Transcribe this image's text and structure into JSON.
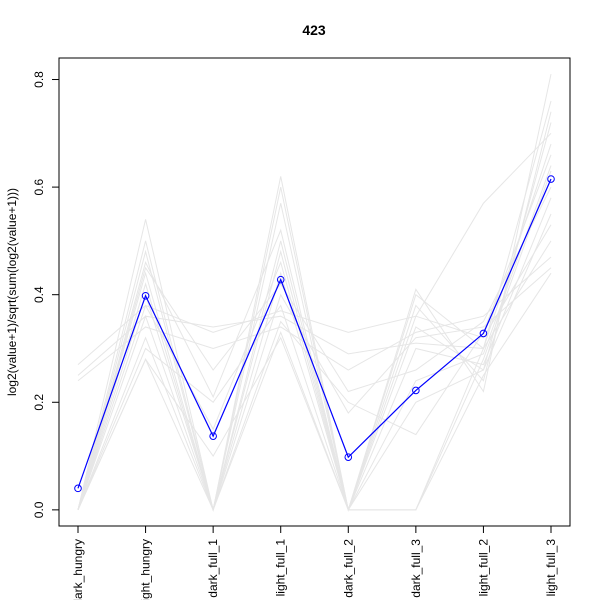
{
  "chart_data": {
    "type": "line",
    "title": "423",
    "xlabel": "",
    "ylabel": "log2(value+1)/sqrt(sum(log2(value+1)))",
    "categories": [
      "dark_hungry",
      "light_hungry",
      "dark_full_1",
      "light_full_1",
      "dark_full_2",
      "dark_full_3",
      "light_full_2",
      "light_full_3"
    ],
    "yticks": [
      "0.0",
      "0.2",
      "0.4",
      "0.6",
      "0.8"
    ],
    "ylim": [
      -0.03,
      0.84
    ],
    "grid": false,
    "legend": "none",
    "highlight_color": "#0000ff",
    "background_color": "#e6e6e6",
    "highlight_series": {
      "values": [
        0.04,
        0.398,
        0.137,
        0.428,
        0.098,
        0.222,
        0.328,
        0.615
      ]
    },
    "background_series": [
      {
        "values": [
          0.0,
          0.54,
          0.0,
          0.62,
          0.0,
          0.41,
          0.22,
          0.81
        ]
      },
      {
        "values": [
          0.0,
          0.5,
          0.0,
          0.6,
          0.0,
          0.4,
          0.3,
          0.76
        ]
      },
      {
        "values": [
          0.0,
          0.48,
          0.0,
          0.57,
          0.0,
          0.38,
          0.24,
          0.74
        ]
      },
      {
        "values": [
          0.0,
          0.46,
          0.21,
          0.52,
          0.0,
          0.36,
          0.57,
          0.7
        ]
      },
      {
        "values": [
          0.0,
          0.44,
          0.0,
          0.5,
          0.0,
          0.34,
          0.26,
          0.72
        ]
      },
      {
        "values": [
          0.0,
          0.42,
          0.0,
          0.48,
          0.0,
          0.0,
          0.3,
          0.68
        ]
      },
      {
        "values": [
          0.27,
          0.38,
          0.33,
          0.37,
          0.33,
          0.36,
          0.32,
          0.53
        ]
      },
      {
        "values": [
          0.25,
          0.36,
          0.34,
          0.36,
          0.29,
          0.31,
          0.3,
          0.5
        ]
      },
      {
        "values": [
          0.24,
          0.34,
          0.3,
          0.34,
          0.26,
          0.33,
          0.36,
          0.47
        ]
      },
      {
        "values": [
          0.0,
          0.32,
          0.0,
          0.4,
          0.18,
          0.32,
          0.34,
          0.45
        ]
      },
      {
        "values": [
          0.0,
          0.3,
          0.2,
          0.38,
          0.0,
          0.0,
          0.28,
          0.63
        ]
      },
      {
        "values": [
          0.0,
          0.28,
          0.0,
          0.35,
          0.2,
          0.14,
          0.33,
          0.66
        ]
      },
      {
        "values": [
          0.0,
          0.38,
          0.15,
          0.46,
          0.0,
          0.3,
          0.27,
          0.58
        ]
      },
      {
        "values": [
          0.0,
          0.4,
          0.0,
          0.44,
          0.0,
          0.2,
          0.26,
          0.55
        ]
      },
      {
        "values": [
          0.0,
          0.45,
          0.26,
          0.42,
          0.22,
          0.26,
          0.35,
          0.6
        ]
      },
      {
        "values": [
          0.0,
          0.36,
          0.0,
          0.33,
          0.0,
          0.24,
          0.29,
          0.64
        ]
      },
      {
        "values": [
          0.0,
          0.28,
          0.1,
          0.32,
          0.0,
          0.0,
          0.25,
          0.44
        ]
      }
    ]
  }
}
